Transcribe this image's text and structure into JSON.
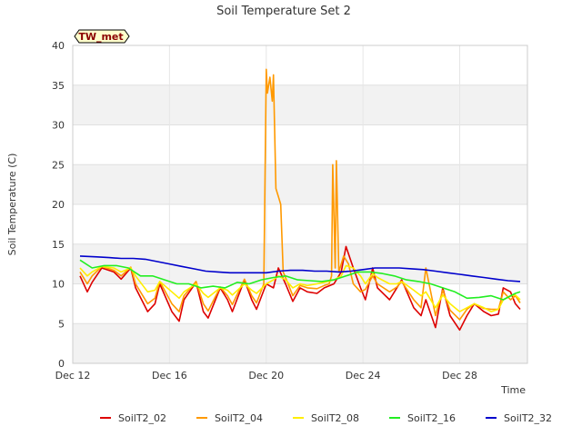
{
  "chart_data": {
    "type": "line",
    "title": "Soil Temperature Set 2",
    "xlabel": "Time",
    "ylabel": "Soil Temperature (C)",
    "ylim": [
      0,
      40
    ],
    "xlim_days": [
      12,
      30.8
    ],
    "yticks": [
      0,
      5,
      10,
      15,
      20,
      25,
      30,
      35,
      40
    ],
    "xticks": [
      {
        "day": 12,
        "label": "Dec 12"
      },
      {
        "day": 16,
        "label": "Dec 16"
      },
      {
        "day": 20,
        "label": "Dec 20"
      },
      {
        "day": 24,
        "label": "Dec 24"
      },
      {
        "day": 28,
        "label": "Dec 28"
      }
    ],
    "grid": true,
    "legend_position": "bottom",
    "site_badge": "TW_met",
    "series": [
      {
        "name": "SoilT2_02",
        "color": "#dd0000",
        "days": [
          12.3,
          12.6,
          12.8,
          13.2,
          13.7,
          14.0,
          14.4,
          14.6,
          15.1,
          15.4,
          15.6,
          16.1,
          16.4,
          16.6,
          17.1,
          17.4,
          17.6,
          18.1,
          18.4,
          18.6,
          19.1,
          19.4,
          19.6,
          20.0,
          20.3,
          20.5,
          20.8,
          21.1,
          21.4,
          21.7,
          22.1,
          22.4,
          22.8,
          23.1,
          23.3,
          23.6,
          23.9,
          24.1,
          24.4,
          24.6,
          25.1,
          25.4,
          25.6,
          26.1,
          26.4,
          26.6,
          27.0,
          27.3,
          27.6,
          28.0,
          28.3,
          28.6,
          29.0,
          29.3,
          29.6,
          29.8,
          30.1,
          30.3,
          30.5
        ],
        "values": [
          11.0,
          9.0,
          10.2,
          12.0,
          11.5,
          10.6,
          12.0,
          9.5,
          6.5,
          7.5,
          10.0,
          6.5,
          5.3,
          8.0,
          10.2,
          6.5,
          5.7,
          9.5,
          8.0,
          6.5,
          10.5,
          8.0,
          6.8,
          10.0,
          9.5,
          12.0,
          10.0,
          7.8,
          9.5,
          9.0,
          8.8,
          9.5,
          10.0,
          11.5,
          14.7,
          12.0,
          9.5,
          8.0,
          12.0,
          9.5,
          8.0,
          9.5,
          10.5,
          7.0,
          6.0,
          8.0,
          4.5,
          9.5,
          6.0,
          4.2,
          6.0,
          7.5,
          6.5,
          6.0,
          6.2,
          9.5,
          9.0,
          7.5,
          6.8
        ]
      },
      {
        "name": "SoilT2_04",
        "color": "#ff9900",
        "days": [
          12.3,
          12.6,
          12.8,
          13.2,
          13.7,
          14.0,
          14.4,
          14.6,
          15.1,
          15.4,
          15.6,
          16.1,
          16.4,
          16.6,
          17.1,
          17.4,
          17.6,
          18.1,
          18.4,
          18.6,
          19.1,
          19.4,
          19.6,
          19.9,
          20.0,
          20.05,
          20.15,
          20.25,
          20.3,
          20.4,
          20.5,
          20.6,
          20.7,
          20.8,
          21.1,
          21.4,
          21.7,
          22.1,
          22.4,
          22.6,
          22.7,
          22.75,
          22.85,
          22.9,
          23.0,
          23.2,
          23.4,
          23.6,
          23.9,
          24.1,
          24.4,
          24.6,
          25.1,
          25.4,
          25.6,
          26.1,
          26.4,
          26.6,
          27.0,
          27.3,
          27.6,
          28.0,
          28.3,
          28.6,
          29.0,
          29.3,
          29.6,
          29.8,
          30.1,
          30.3,
          30.5
        ],
        "values": [
          11.5,
          10.0,
          11.0,
          12.2,
          11.7,
          11.0,
          12.1,
          10.0,
          7.5,
          8.2,
          10.3,
          7.5,
          6.5,
          8.5,
          10.3,
          7.5,
          6.6,
          9.6,
          8.5,
          7.4,
          10.6,
          8.5,
          7.6,
          10.0,
          37.0,
          34.0,
          36.0,
          33.0,
          36.3,
          22.0,
          21.0,
          20.0,
          11.5,
          10.8,
          8.5,
          9.8,
          9.5,
          9.4,
          9.8,
          10.0,
          11.0,
          25.0,
          12.0,
          25.5,
          11.5,
          13.5,
          12.5,
          10.0,
          9.0,
          9.3,
          11.0,
          10.0,
          9.0,
          9.6,
          10.3,
          8.0,
          7.0,
          12.0,
          6.0,
          9.2,
          6.7,
          5.5,
          6.8,
          7.5,
          6.9,
          6.8,
          6.8,
          9.0,
          8.0,
          8.5,
          7.6
        ]
      },
      {
        "name": "SoilT2_08",
        "color": "#ffee00",
        "days": [
          12.3,
          12.6,
          12.8,
          13.2,
          13.7,
          14.0,
          14.4,
          14.6,
          15.1,
          15.4,
          15.6,
          16.1,
          16.4,
          16.6,
          17.1,
          17.4,
          17.6,
          18.1,
          18.4,
          18.6,
          19.1,
          19.4,
          19.6,
          20.0,
          20.3,
          20.5,
          20.8,
          21.1,
          21.4,
          21.7,
          22.1,
          22.4,
          22.8,
          23.1,
          23.3,
          23.6,
          23.9,
          24.1,
          24.4,
          24.6,
          25.1,
          25.4,
          25.6,
          26.1,
          26.4,
          26.6,
          27.0,
          27.3,
          27.6,
          28.0,
          28.3,
          28.6,
          29.0,
          29.3,
          29.6,
          29.8,
          30.1,
          30.3,
          30.5
        ],
        "values": [
          12.0,
          11.0,
          11.5,
          12.2,
          12.0,
          11.5,
          12.0,
          11.0,
          9.0,
          9.2,
          10.3,
          9.0,
          8.2,
          9.0,
          10.0,
          8.8,
          8.3,
          9.5,
          9.2,
          8.6,
          10.0,
          9.2,
          8.8,
          10.0,
          10.5,
          11.0,
          10.5,
          9.5,
          10.0,
          9.8,
          10.0,
          10.2,
          10.5,
          11.0,
          12.3,
          12.0,
          11.0,
          10.0,
          11.3,
          10.8,
          10.0,
          10.0,
          10.3,
          9.2,
          8.5,
          9.0,
          7.0,
          8.6,
          7.5,
          6.5,
          7.0,
          7.5,
          7.0,
          6.5,
          6.8,
          8.0,
          8.5,
          8.6,
          8.0
        ]
      },
      {
        "name": "SoilT2_16",
        "color": "#22ee22",
        "days": [
          12.3,
          12.8,
          13.3,
          13.8,
          14.3,
          14.8,
          15.3,
          15.8,
          16.3,
          16.8,
          17.3,
          17.8,
          18.3,
          18.8,
          19.3,
          19.8,
          20.3,
          20.8,
          21.3,
          21.8,
          22.3,
          22.8,
          23.3,
          23.8,
          24.3,
          24.8,
          25.3,
          25.8,
          26.3,
          26.8,
          27.3,
          27.8,
          28.3,
          28.8,
          29.3,
          29.8,
          30.3,
          30.5
        ],
        "values": [
          13.0,
          12.0,
          12.3,
          12.3,
          12.0,
          11.0,
          11.0,
          10.5,
          10.0,
          10.0,
          9.5,
          9.7,
          9.5,
          10.2,
          10.0,
          10.5,
          10.8,
          11.0,
          10.5,
          10.4,
          10.3,
          10.5,
          11.0,
          11.5,
          11.5,
          11.3,
          11.0,
          10.5,
          10.3,
          10.0,
          9.5,
          9.0,
          8.2,
          8.3,
          8.5,
          8.0,
          8.8,
          9.0
        ]
      },
      {
        "name": "SoilT2_32",
        "color": "#0000cc",
        "days": [
          12.3,
          13.0,
          13.5,
          14.0,
          14.5,
          15.0,
          15.5,
          16.0,
          16.5,
          17.0,
          17.5,
          18.0,
          18.5,
          19.0,
          19.5,
          20.0,
          20.5,
          21.0,
          21.5,
          22.0,
          22.5,
          23.0,
          23.5,
          24.0,
          24.5,
          25.0,
          25.5,
          26.0,
          26.5,
          27.0,
          27.5,
          28.0,
          28.5,
          29.0,
          29.5,
          30.0,
          30.5
        ],
        "values": [
          13.5,
          13.4,
          13.3,
          13.2,
          13.2,
          13.1,
          12.8,
          12.5,
          12.2,
          11.9,
          11.6,
          11.5,
          11.4,
          11.4,
          11.4,
          11.4,
          11.6,
          11.7,
          11.7,
          11.6,
          11.6,
          11.5,
          11.6,
          11.8,
          12.0,
          12.0,
          12.0,
          11.9,
          11.8,
          11.6,
          11.4,
          11.2,
          11.0,
          10.8,
          10.6,
          10.4,
          10.3
        ]
      }
    ]
  }
}
